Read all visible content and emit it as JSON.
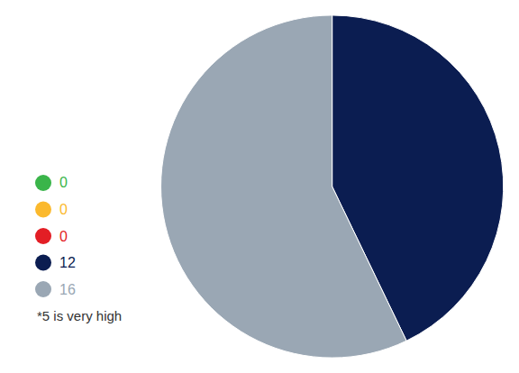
{
  "chart_data": {
    "type": "pie",
    "values": [
      0,
      0,
      0,
      12,
      16
    ],
    "colors": [
      "#3ab54a",
      "#fbb92d",
      "#e31e25",
      "#0b1d51",
      "#9aa7b4"
    ],
    "legend": "left",
    "annotations": [
      "*5 is very high"
    ]
  }
}
